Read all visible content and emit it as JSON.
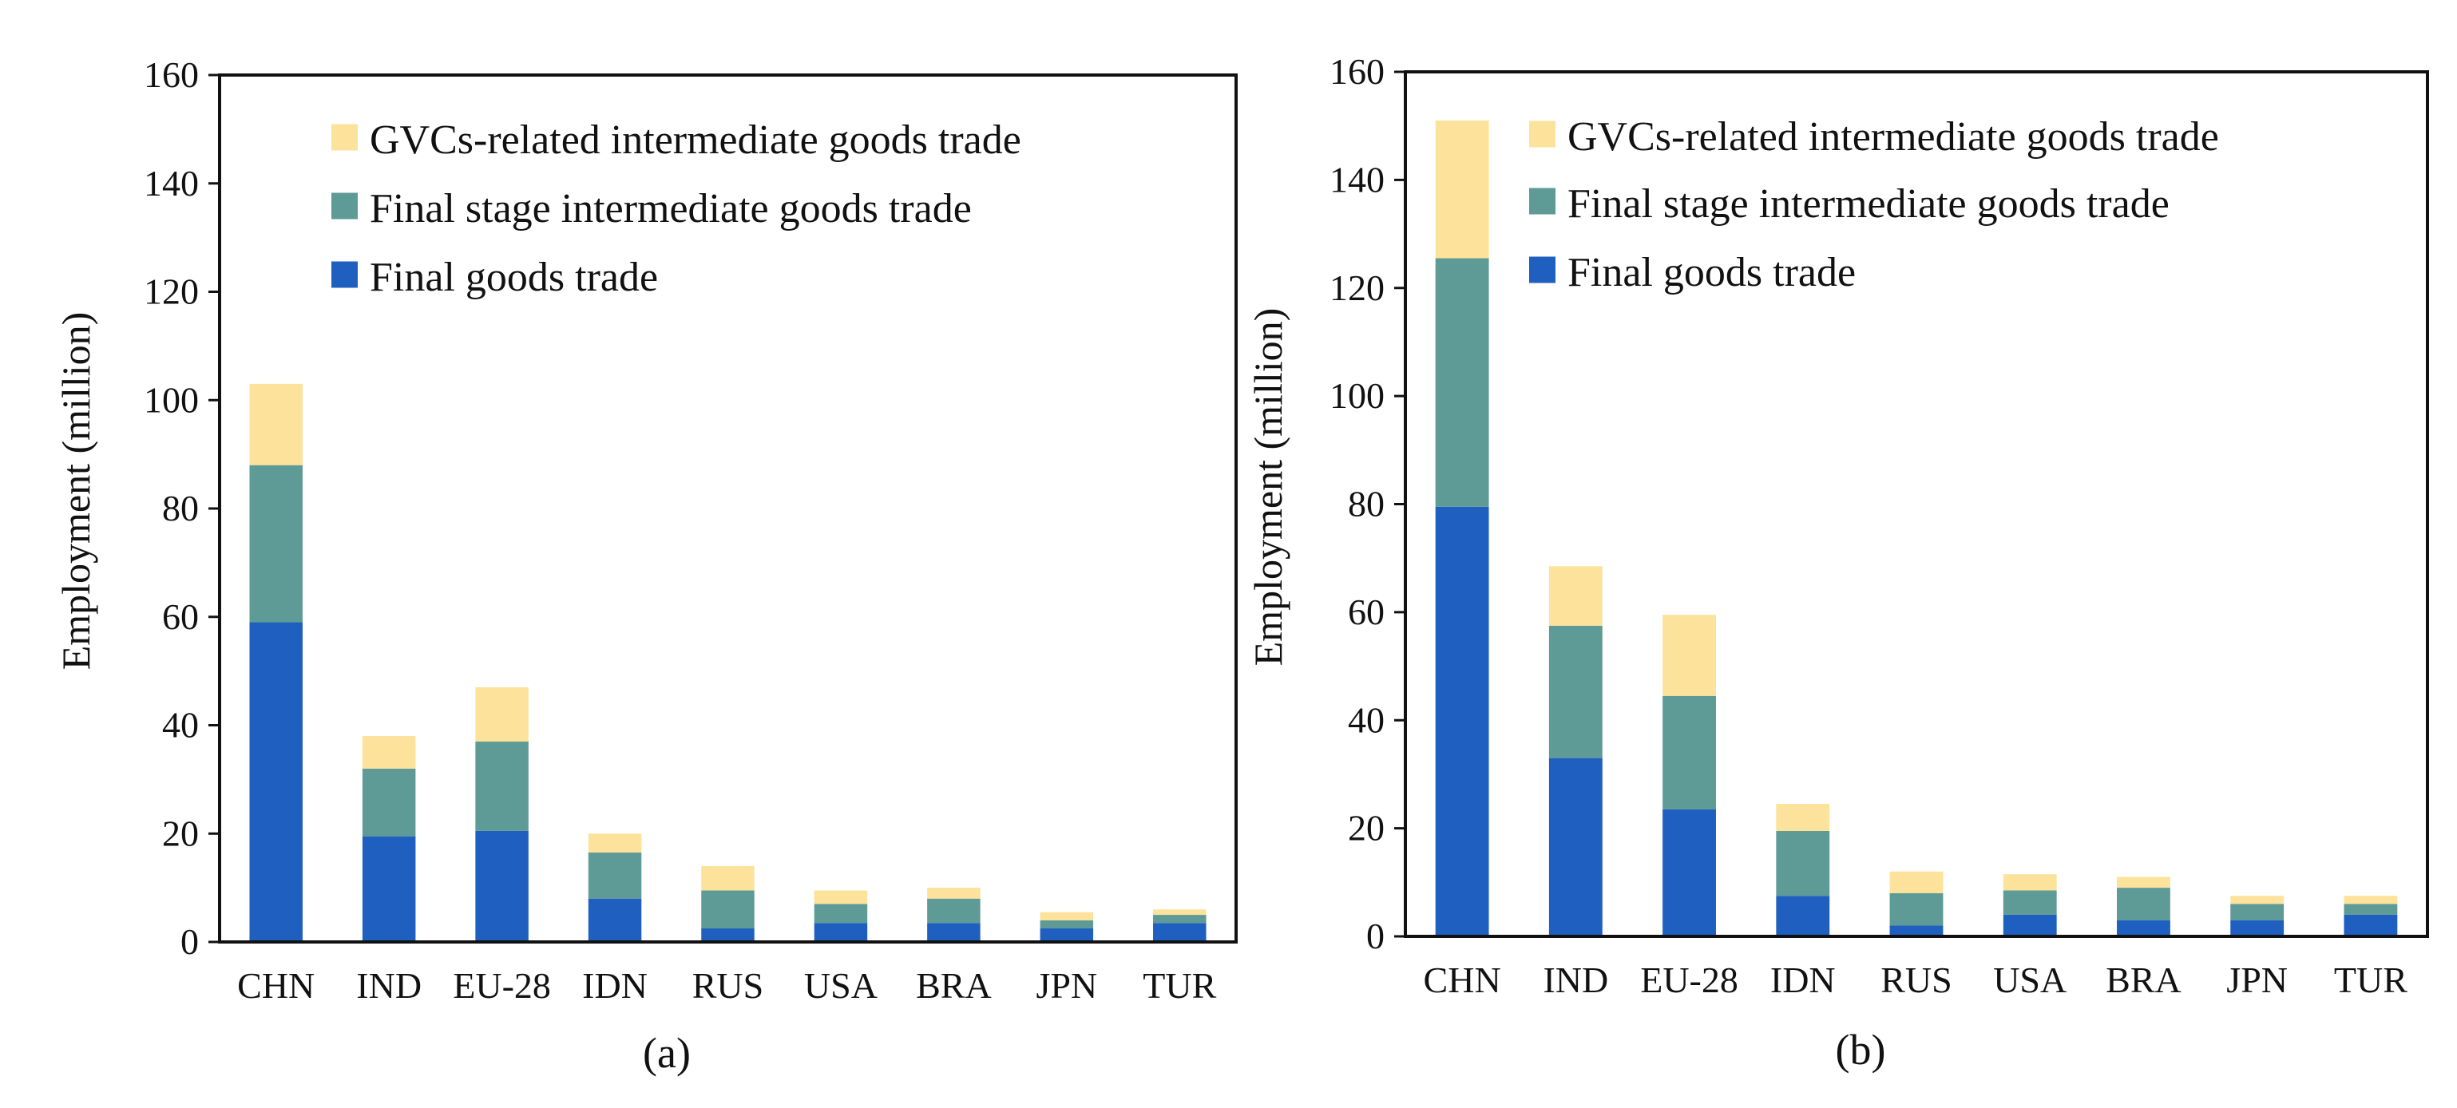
{
  "colors": {
    "final_goods": "#1F5FBF",
    "final_stage": "#5E9A96",
    "gvc": "#FCE29A",
    "axis": "#111111",
    "background": "#ffffff"
  },
  "chart_data": [
    {
      "type": "bar",
      "stacked": true,
      "panel_label": "(a)",
      "ylabel": "Employment (million)",
      "xlabel": "",
      "ylim": [
        0,
        160
      ],
      "yticks": [
        0,
        20,
        40,
        60,
        80,
        100,
        120,
        140,
        160
      ],
      "grid": false,
      "legend_position": "top-right",
      "legend_order": [
        "GVCs-related intermediate goods trade",
        "Final stage intermediate goods trade",
        "Final goods trade"
      ],
      "categories": [
        "CHN",
        "IND",
        "EU-28",
        "IDN",
        "RUS",
        "USA",
        "BRA",
        "JPN",
        "TUR"
      ],
      "series": [
        {
          "name": "Final goods trade",
          "color_key": "final_goods",
          "values": [
            59,
            19.5,
            20.5,
            8,
            2.5,
            3.5,
            3.5,
            2.5,
            3.5
          ]
        },
        {
          "name": "Final stage intermediate goods trade",
          "color_key": "final_stage",
          "values": [
            29,
            12.5,
            16.5,
            8.5,
            7,
            3.5,
            4.5,
            1.5,
            1.5
          ]
        },
        {
          "name": "GVCs-related intermediate goods trade",
          "color_key": "gvc",
          "values": [
            15,
            6,
            10,
            3.5,
            4.5,
            2.5,
            2,
            1.5,
            1
          ]
        }
      ]
    },
    {
      "type": "bar",
      "stacked": true,
      "panel_label": "(b)",
      "ylabel": "Employment (million)",
      "xlabel": "",
      "ylim": [
        0,
        160
      ],
      "yticks": [
        0,
        20,
        40,
        60,
        80,
        100,
        120,
        140,
        160
      ],
      "grid": false,
      "legend_position": "top-right",
      "legend_order": [
        "GVCs-related intermediate goods trade",
        "Final stage intermediate goods trade",
        "Final goods trade"
      ],
      "categories": [
        "CHN",
        "IND",
        "EU-28",
        "IDN",
        "RUS",
        "USA",
        "BRA",
        "JPN",
        "TUR"
      ],
      "series": [
        {
          "name": "Final goods trade",
          "color_key": "final_goods",
          "values": [
            79.5,
            33,
            23.5,
            7.5,
            2,
            4,
            3,
            3,
            4
          ]
        },
        {
          "name": "Final stage intermediate goods trade",
          "color_key": "final_stage",
          "values": [
            46,
            24.5,
            21,
            12,
            6,
            4.5,
            6,
            3,
            2
          ]
        },
        {
          "name": "GVCs-related intermediate goods trade",
          "color_key": "gvc",
          "values": [
            25.5,
            11,
            15,
            5,
            4,
            3,
            2,
            1.5,
            1.5
          ]
        }
      ]
    }
  ]
}
